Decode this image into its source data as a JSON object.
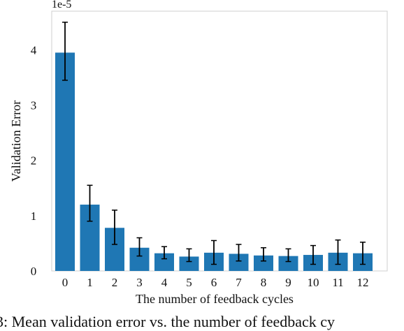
{
  "chart_data": {
    "type": "bar",
    "categories": [
      "0",
      "1",
      "2",
      "3",
      "4",
      "5",
      "6",
      "7",
      "8",
      "9",
      "10",
      "11",
      "12"
    ],
    "values": [
      3.95,
      1.2,
      0.78,
      0.42,
      0.32,
      0.26,
      0.33,
      0.31,
      0.28,
      0.27,
      0.29,
      0.33,
      0.32
    ],
    "error_low": [
      3.45,
      0.9,
      0.48,
      0.27,
      0.22,
      0.17,
      0.12,
      0.18,
      0.18,
      0.17,
      0.12,
      0.12,
      0.12
    ],
    "error_high": [
      4.5,
      1.55,
      1.1,
      0.6,
      0.44,
      0.4,
      0.55,
      0.48,
      0.42,
      0.4,
      0.46,
      0.56,
      0.52
    ],
    "xlabel": "The number of feedback cycles",
    "ylabel": "Validation Error",
    "exponent_label": "1e-5",
    "ylim": [
      0,
      4.7
    ],
    "yticks": [
      "0",
      "1",
      "2",
      "3",
      "4"
    ],
    "grid": false,
    "bar_color": "#1f77b4",
    "caption": "3: Mean validation error vs. the number of feedback cy"
  }
}
